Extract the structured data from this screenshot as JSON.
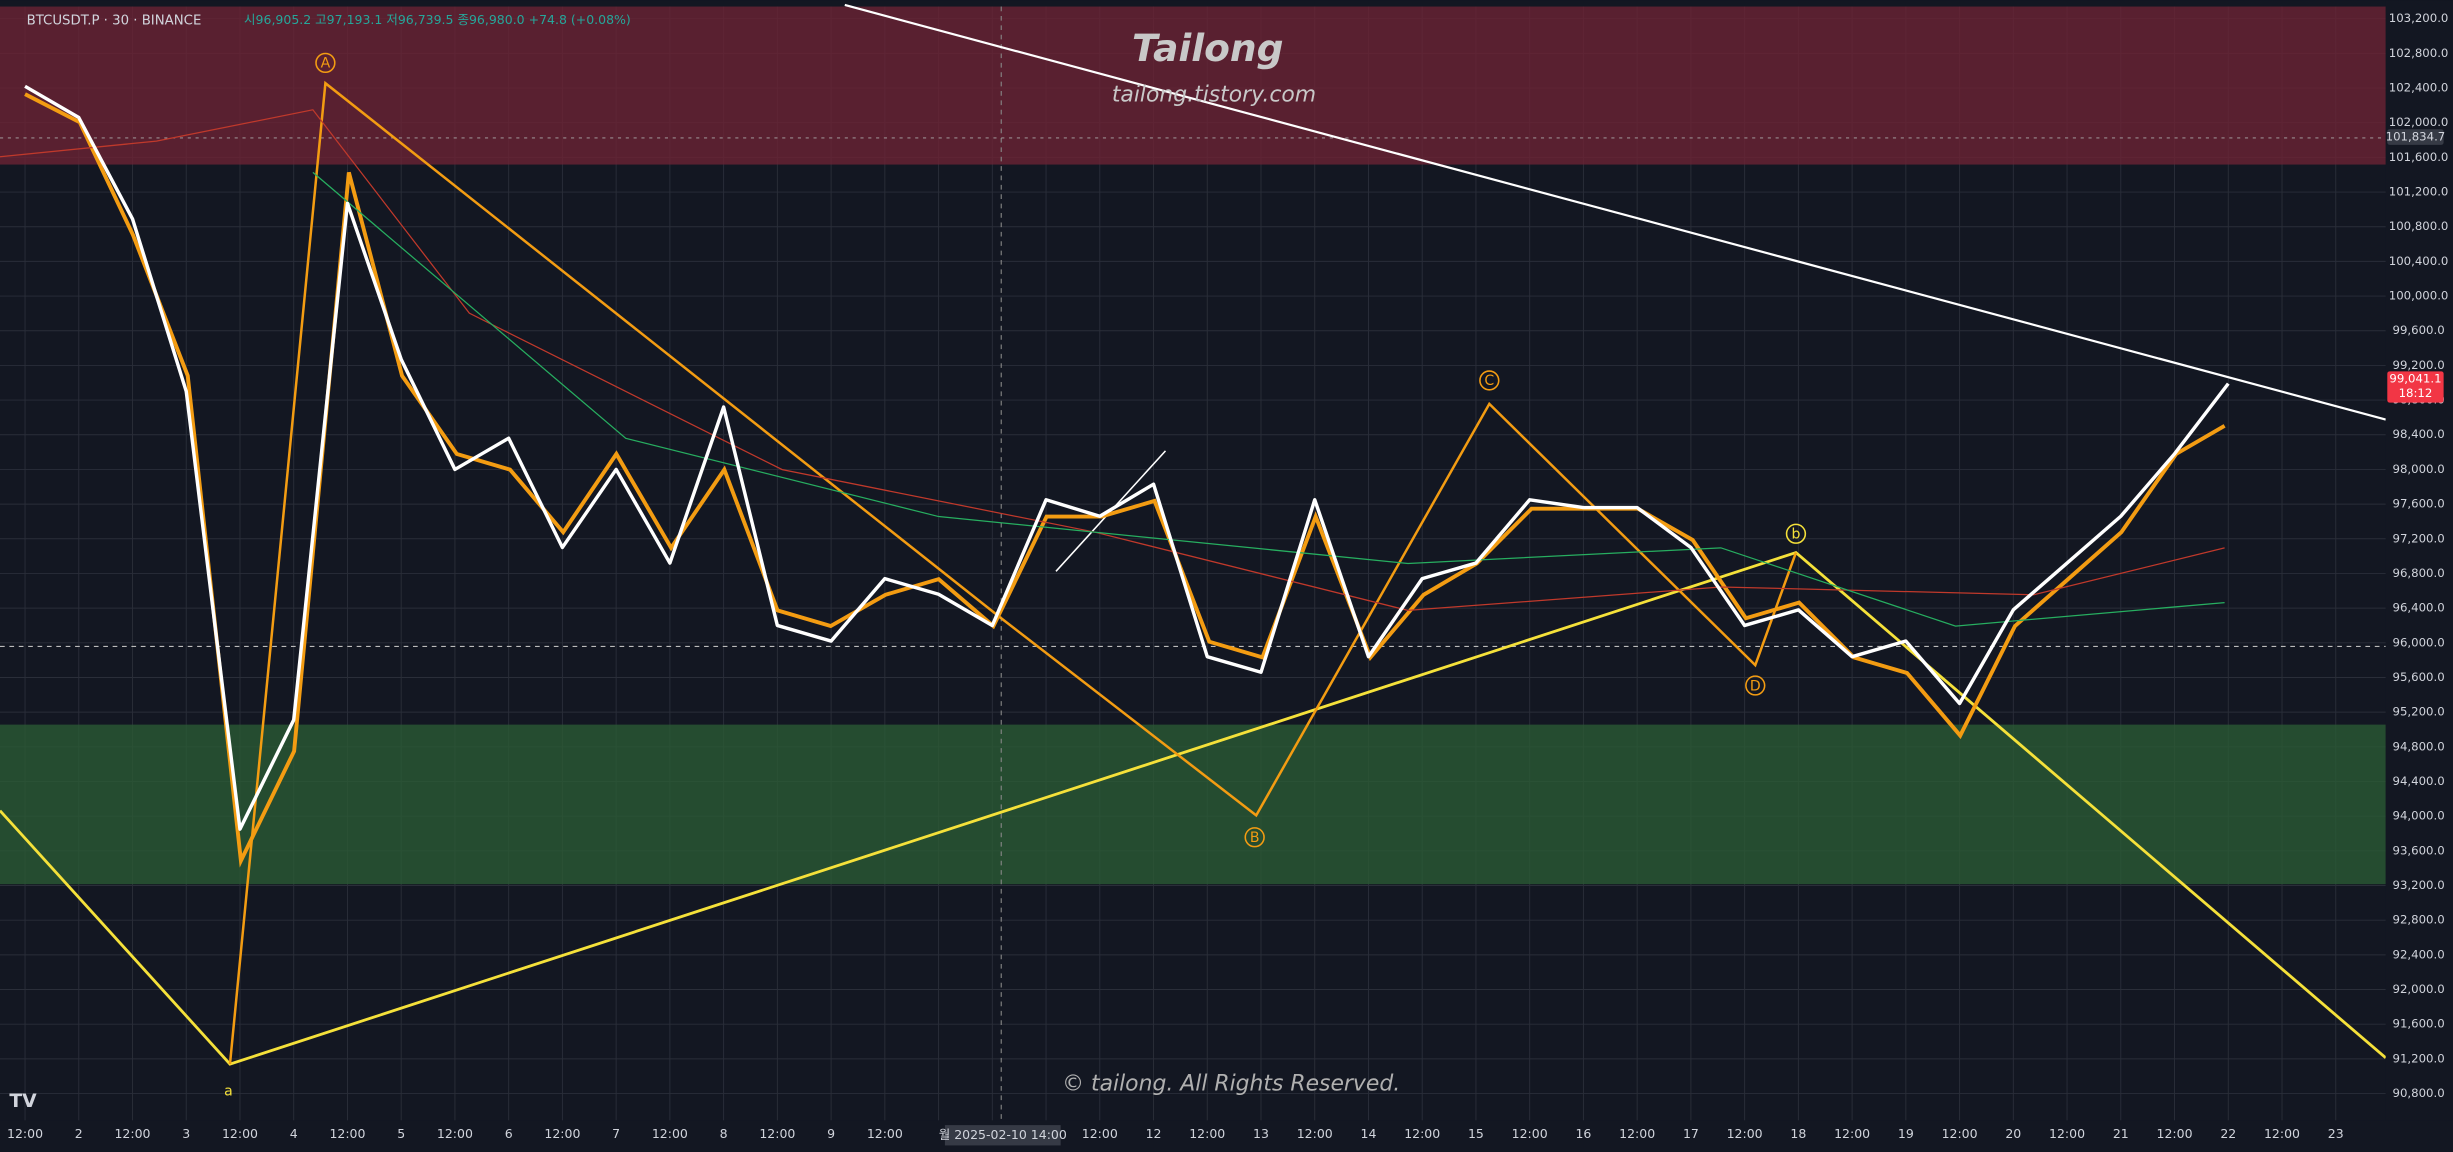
{
  "header": {
    "symbol": "BTCUSDT.P · 30 · BINANCE",
    "ohlc": "시96,905.2 고97,193.1 저96,739.5 종96,980.0 +74.8 (+0.08%)"
  },
  "watermark": {
    "title": "Tailong",
    "url": "tailong.tistory.com",
    "copyright": "© tailong. All Rights Reserved."
  },
  "chart_data": {
    "type": "line",
    "categories": [
      "12:00",
      "2",
      "12:00",
      "3",
      "12:00",
      "4",
      "12:00",
      "5",
      "12:00",
      "6",
      "12:00",
      "7",
      "12:00",
      "8",
      "12:00",
      "9",
      "12:00",
      null,
      null,
      null,
      "12:00",
      "12",
      "12:00",
      "13",
      "12:00",
      "14",
      "12:00",
      "15",
      "12:00",
      "16",
      "12:00",
      "17",
      "12:00",
      "18",
      "12:00",
      "19",
      "12:00",
      "20",
      "12:00",
      "21",
      "12:00",
      "22",
      "12:00",
      "23"
    ],
    "values": [
      102420,
      102060,
      100890,
      98900,
      93850,
      95110,
      101070,
      99270,
      98000,
      98360,
      97100,
      98000,
      96920,
      98720,
      96200,
      96020,
      96740,
      96560,
      96200,
      97650,
      97460,
      97830,
      95840,
      95660,
      97650,
      95840,
      96740,
      96920,
      97650,
      97560,
      97560,
      97100,
      96200,
      96380,
      95840,
      96020,
      95300,
      96380,
      96920,
      97460,
      98180,
      98990,
      null,
      null
    ],
    "color": "#ffffff",
    "ylim": [
      90490,
      103340
    ],
    "yticks": [
      {
        "value": 90800,
        "label": "90,800.0"
      },
      {
        "value": 91200,
        "label": "91,200.0"
      },
      {
        "value": 91600,
        "label": "91,600.0"
      },
      {
        "value": 92000,
        "label": "92,000.0"
      },
      {
        "value": 92400,
        "label": "92,400.0"
      },
      {
        "value": 92800,
        "label": "92,800.0"
      },
      {
        "value": 93200,
        "label": "93,200.0"
      },
      {
        "value": 93600,
        "label": "93,600.0"
      },
      {
        "value": 94000,
        "label": "94,000.0"
      },
      {
        "value": 94400,
        "label": "94,400.0"
      },
      {
        "value": 94800,
        "label": "94,800.0"
      },
      {
        "value": 95200,
        "label": "95,200.0"
      },
      {
        "value": 95600,
        "label": "95,600.0"
      },
      {
        "value": 96000,
        "label": "96,000.0"
      },
      {
        "value": 96400,
        "label": "96,400.0"
      },
      {
        "value": 96800,
        "label": "96,800.0"
      },
      {
        "value": 97200,
        "label": "97,200.0"
      },
      {
        "value": 97600,
        "label": "97,600.0"
      },
      {
        "value": 98000,
        "label": "98,000.0"
      },
      {
        "value": 98400,
        "label": "98,400.0"
      },
      {
        "value": 98800,
        "label": "98,800.0"
      },
      {
        "value": 99200,
        "label": "99,200.0"
      },
      {
        "value": 99600,
        "label": "99,600.0"
      },
      {
        "value": 100000,
        "label": "100,000.0"
      },
      {
        "value": 100400,
        "label": "100,400.0"
      },
      {
        "value": 100800,
        "label": "100,800.0"
      },
      {
        "value": 101200,
        "label": "101,200.0"
      },
      {
        "value": 101600,
        "label": "101,600.0"
      },
      {
        "value": 102000,
        "label": "102,000.0"
      },
      {
        "value": 102400,
        "label": "102,400.0"
      },
      {
        "value": 102800,
        "label": "102,800.0"
      },
      {
        "value": 103200,
        "label": "103,200.0"
      }
    ],
    "grid": true,
    "price_labels": [
      {
        "value": 101834.7,
        "label": "101,834.7"
      },
      {
        "value": 99041.1,
        "label": "99,041.1"
      }
    ],
    "countdown": "18:12",
    "crosshair_label": "월 2025-02-10  14:00",
    "wave_labels": [
      "A",
      "B",
      "C",
      "D",
      "a",
      "b"
    ]
  }
}
